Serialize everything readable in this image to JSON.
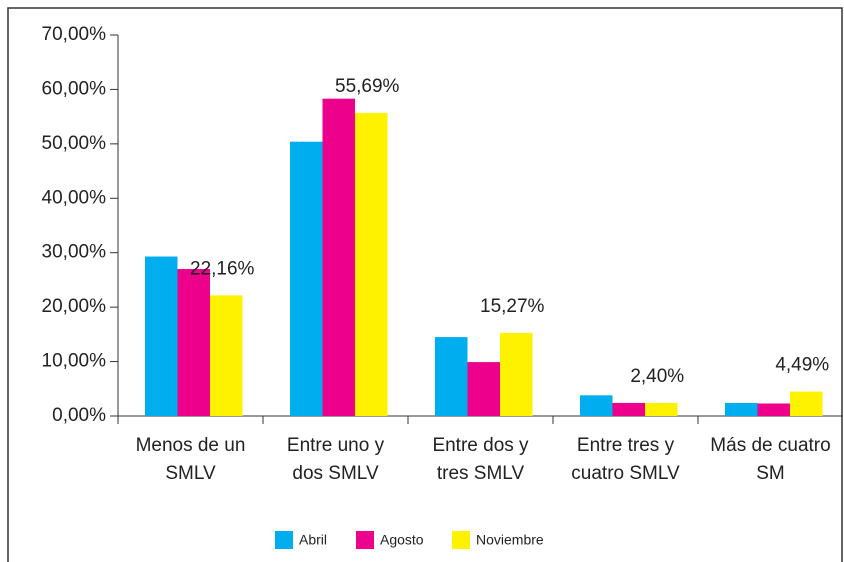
{
  "chart_data": {
    "type": "bar",
    "categories": [
      [
        "Menos de un",
        "SMLV"
      ],
      [
        "Entre uno y",
        "dos SMLV"
      ],
      [
        "Entre dos y",
        "tres SMLV"
      ],
      [
        "Entre tres y",
        "cuatro SMLV"
      ],
      [
        "Más de cuatro",
        "SM"
      ]
    ],
    "series": [
      {
        "name": "Abril",
        "color": "#00aeef",
        "values": [
          29.3,
          50.4,
          14.5,
          3.8,
          2.4
        ]
      },
      {
        "name": "Agosto",
        "color": "#ec008c",
        "values": [
          27.0,
          58.3,
          9.9,
          2.4,
          2.3
        ]
      },
      {
        "name": "Noviembre",
        "color": "#fff200",
        "values": [
          22.16,
          55.69,
          15.27,
          2.4,
          4.49
        ],
        "value_labels": [
          "22,16%",
          "55,69%",
          "15,27%",
          "2,40%",
          "4,49%"
        ]
      }
    ],
    "ylim": [
      0,
      70
    ],
    "yticks": [
      {
        "value": 0,
        "label": "0,00%"
      },
      {
        "value": 10,
        "label": "10,00%"
      },
      {
        "value": 20,
        "label": "20,00%"
      },
      {
        "value": 30,
        "label": "30,00%"
      },
      {
        "value": 40,
        "label": "40,00%"
      },
      {
        "value": 50,
        "label": "50,00%"
      },
      {
        "value": 60,
        "label": "60,00%"
      },
      {
        "value": 70,
        "label": "70,00%"
      }
    ],
    "legend": "bottom"
  }
}
